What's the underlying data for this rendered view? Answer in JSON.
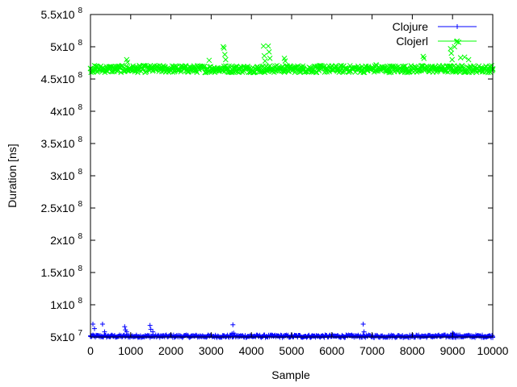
{
  "chart_data": {
    "type": "scatter",
    "title": "",
    "xlabel": "Sample",
    "ylabel": "Duration [ns]",
    "xlim": [
      0,
      10000
    ],
    "ylim": [
      50000000,
      550000000
    ],
    "x_ticks": [
      0,
      1000,
      2000,
      3000,
      4000,
      5000,
      6000,
      7000,
      8000,
      9000,
      10000
    ],
    "x_tick_labels": [
      "0",
      "1000",
      "2000",
      "3000",
      "4000",
      "5000",
      "6000",
      "7000",
      "8000",
      "9000",
      "10000"
    ],
    "y_ticks": [
      {
        "value": 50000000,
        "mantissa": "5x10",
        "exp": "7"
      },
      {
        "value": 100000000,
        "mantissa": "1x10",
        "exp": "8"
      },
      {
        "value": 150000000,
        "mantissa": "1.5x10",
        "exp": "8"
      },
      {
        "value": 200000000,
        "mantissa": "2x10",
        "exp": "8"
      },
      {
        "value": 250000000,
        "mantissa": "2.5x10",
        "exp": "8"
      },
      {
        "value": 300000000,
        "mantissa": "3x10",
        "exp": "8"
      },
      {
        "value": 350000000,
        "mantissa": "3.5x10",
        "exp": "8"
      },
      {
        "value": 400000000,
        "mantissa": "4x10",
        "exp": "8"
      },
      {
        "value": 450000000,
        "mantissa": "4.5x10",
        "exp": "8"
      },
      {
        "value": 500000000,
        "mantissa": "5x10",
        "exp": "8"
      },
      {
        "value": 550000000,
        "mantissa": "5.5x10",
        "exp": "8"
      }
    ],
    "grid": false,
    "legend_position": "top-right",
    "series": [
      {
        "name": "Clojure",
        "color": "#0000ff",
        "marker": "plus",
        "points": [
          [
            0,
            51000000
          ],
          [
            20,
            52000000
          ],
          [
            60,
            70000000
          ],
          [
            100,
            63000000
          ],
          [
            150,
            52000000
          ],
          [
            300,
            70000000
          ],
          [
            350,
            58000000
          ],
          [
            500,
            51500000
          ],
          [
            700,
            51000000
          ],
          [
            850,
            66000000
          ],
          [
            870,
            61000000
          ],
          [
            900,
            58000000
          ],
          [
            950,
            52000000
          ],
          [
            1200,
            51000000
          ],
          [
            1480,
            68000000
          ],
          [
            1500,
            62000000
          ],
          [
            1550,
            58000000
          ],
          [
            1800,
            51000000
          ],
          [
            2100,
            51000000
          ],
          [
            2500,
            51500000
          ],
          [
            2900,
            51000000
          ],
          [
            3300,
            51000000
          ],
          [
            3480,
            53000000
          ],
          [
            3520,
            55000000
          ],
          [
            3540,
            69000000
          ],
          [
            3560,
            56000000
          ],
          [
            3700,
            51000000
          ],
          [
            4000,
            51500000
          ],
          [
            4500,
            51000000
          ],
          [
            5000,
            51000000
          ],
          [
            5500,
            51500000
          ],
          [
            6000,
            51000000
          ],
          [
            6500,
            51000000
          ],
          [
            6780,
            70000000
          ],
          [
            6800,
            58000000
          ],
          [
            7000,
            51000000
          ],
          [
            7500,
            51500000
          ],
          [
            8000,
            51000000
          ],
          [
            8500,
            51000000
          ],
          [
            8950,
            53000000
          ],
          [
            9000,
            56000000
          ],
          [
            9020,
            55000000
          ],
          [
            9050,
            54000000
          ],
          [
            9100,
            53000000
          ],
          [
            9500,
            51000000
          ],
          [
            10000,
            51000000
          ]
        ]
      },
      {
        "name": "Clojerl",
        "color": "#00ff00",
        "marker": "cross",
        "points": [
          [
            0,
            466000000
          ],
          [
            200,
            465000000
          ],
          [
            400,
            467000000
          ],
          [
            600,
            464000000
          ],
          [
            900,
            480000000
          ],
          [
            920,
            476000000
          ],
          [
            1200,
            466000000
          ],
          [
            1500,
            465000000
          ],
          [
            1800,
            467000000
          ],
          [
            2100,
            463000000
          ],
          [
            2400,
            466000000
          ],
          [
            2950,
            479000000
          ],
          [
            3000,
            466000000
          ],
          [
            3300,
            500000000
          ],
          [
            3320,
            498000000
          ],
          [
            3340,
            488000000
          ],
          [
            3360,
            480000000
          ],
          [
            3600,
            466000000
          ],
          [
            3900,
            467000000
          ],
          [
            4300,
            501000000
          ],
          [
            4320,
            486000000
          ],
          [
            4340,
            478000000
          ],
          [
            4420,
            501000000
          ],
          [
            4440,
            492000000
          ],
          [
            4460,
            482000000
          ],
          [
            4820,
            482000000
          ],
          [
            4840,
            478000000
          ],
          [
            5000,
            466000000
          ],
          [
            5300,
            465000000
          ],
          [
            5700,
            466000000
          ],
          [
            6000,
            464000000
          ],
          [
            6400,
            466000000
          ],
          [
            6800,
            467000000
          ],
          [
            7100,
            472000000
          ],
          [
            7400,
            466000000
          ],
          [
            7800,
            465000000
          ],
          [
            8270,
            485000000
          ],
          [
            8290,
            482000000
          ],
          [
            8600,
            466000000
          ],
          [
            8950,
            497000000
          ],
          [
            8970,
            490000000
          ],
          [
            8990,
            480000000
          ],
          [
            9050,
            500000000
          ],
          [
            9100,
            508000000
          ],
          [
            9150,
            507000000
          ],
          [
            9200,
            483000000
          ],
          [
            9300,
            484000000
          ],
          [
            9400,
            480000000
          ],
          [
            9600,
            466000000
          ],
          [
            9800,
            465000000
          ],
          [
            10000,
            466000000
          ]
        ]
      }
    ],
    "bands": [
      {
        "series": "Clojure",
        "center": 51200000,
        "half_spread": 2000000,
        "count": 500
      },
      {
        "series": "Clojerl",
        "center": 465500000,
        "half_spread": 5500000,
        "count": 700
      }
    ]
  }
}
